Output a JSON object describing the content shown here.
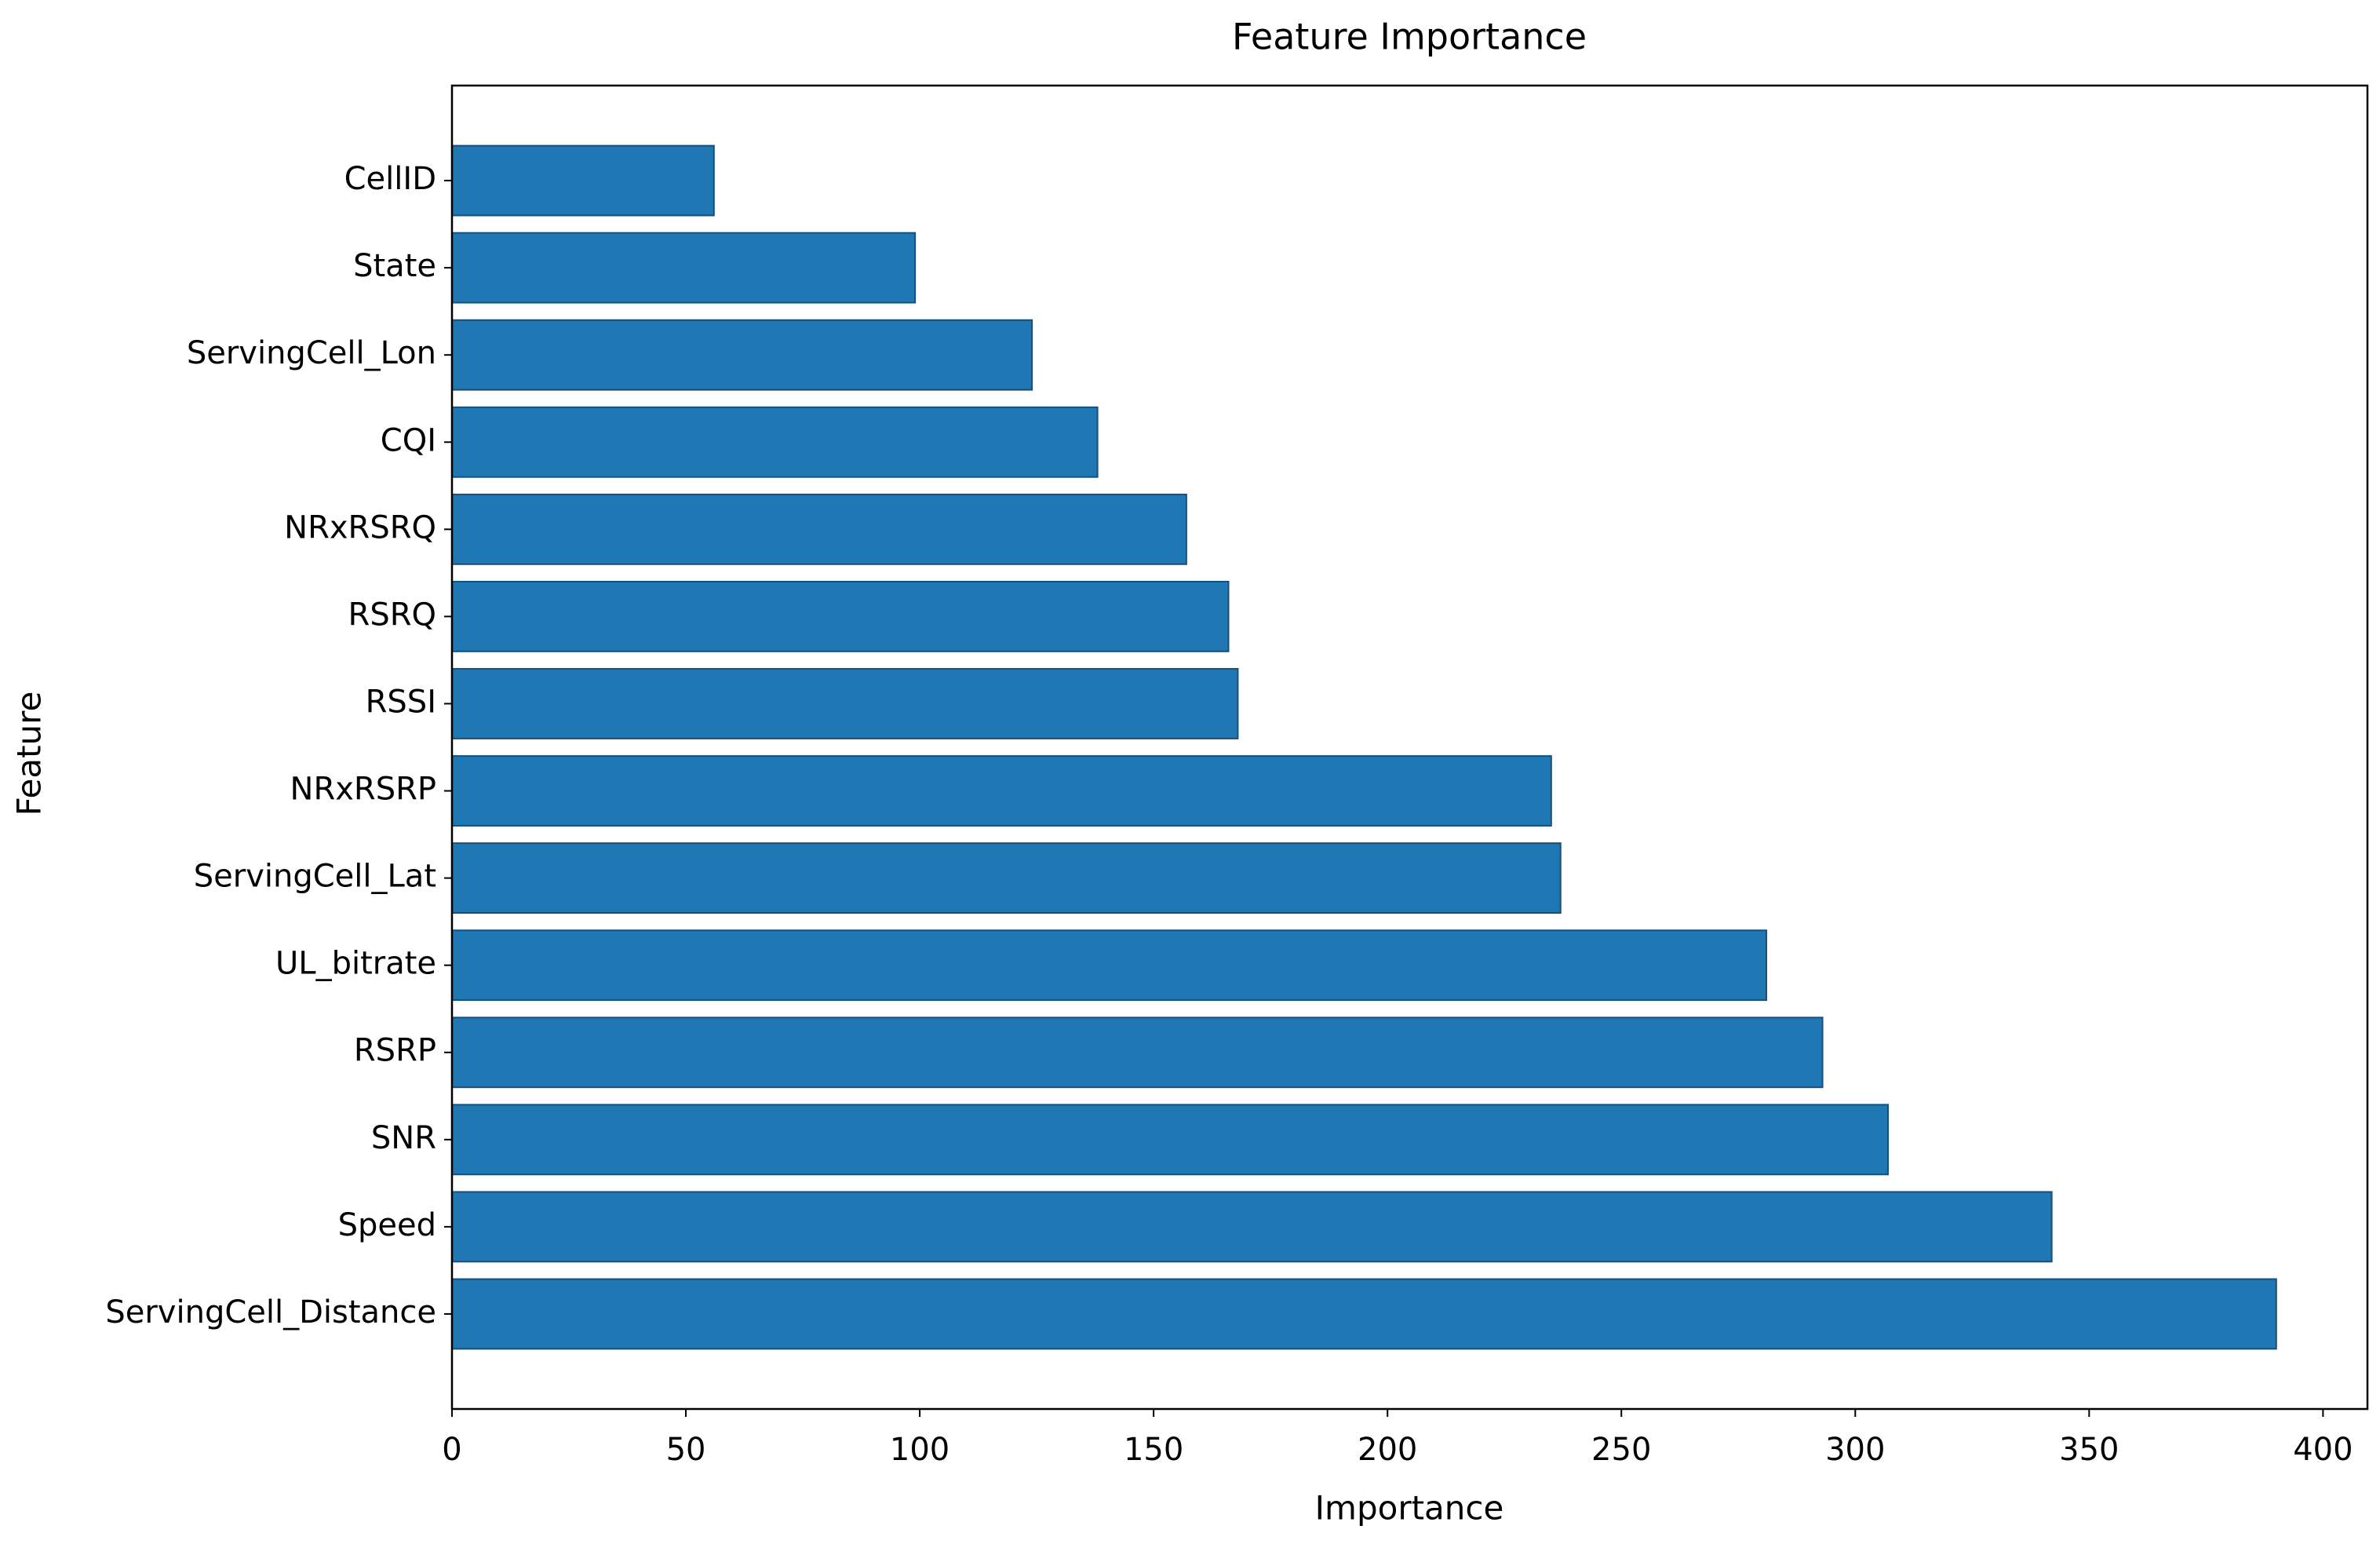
{
  "chart_data": {
    "type": "barh",
    "title": "Feature Importance",
    "xlabel": "Importance",
    "ylabel": "Feature",
    "categories": [
      "CellID",
      "State",
      "ServingCell_Lon",
      "CQI",
      "NRxRSRQ",
      "RSRQ",
      "RSSI",
      "NRxRSRP",
      "ServingCell_Lat",
      "UL_bitrate",
      "RSRP",
      "SNR",
      "Speed",
      "ServingCell_Distance"
    ],
    "values": [
      56,
      99,
      124,
      138,
      157,
      166,
      168,
      235,
      237,
      281,
      293,
      307,
      342,
      390
    ],
    "color": "#1f77b4",
    "xlim": [
      0,
      409.5
    ],
    "xticks": [
      0,
      50,
      100,
      150,
      200,
      250,
      300,
      350,
      400
    ],
    "grid": false
  }
}
